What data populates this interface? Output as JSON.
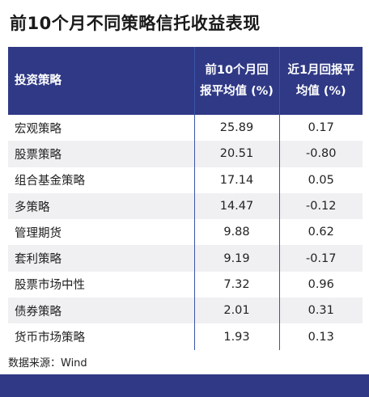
{
  "title": "前10个月不同策略信托收益表现",
  "table": {
    "header": [
      "投资策略",
      "前10个月回报平均值 (%)",
      "近1月回报平均值 (%)"
    ],
    "rows": [
      [
        "宏观策略",
        "25.89",
        "0.17"
      ],
      [
        "股票策略",
        "20.51",
        "-0.80"
      ],
      [
        "组合基金策略",
        "17.14",
        "0.05"
      ],
      [
        "多策略",
        "14.47",
        "-0.12"
      ],
      [
        "管理期货",
        "9.88",
        "0.62"
      ],
      [
        "套利策略",
        "9.19",
        "-0.17"
      ],
      [
        "股票市场中性",
        "7.32",
        "0.96"
      ],
      [
        "债券策略",
        "2.01",
        "0.31"
      ],
      [
        "货币市场策略",
        "1.93",
        "0.13"
      ]
    ]
  },
  "source": "数据来源：Wind"
}
